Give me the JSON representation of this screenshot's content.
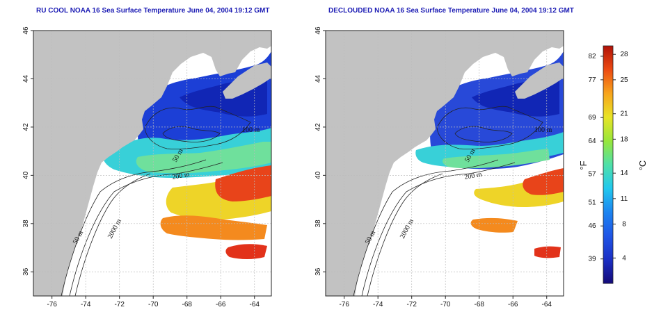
{
  "panels": [
    {
      "title": "RU COOL NOAA 16 Sea Surface Temperature June 04, 2004 19:12 GMT",
      "kind": "cloud-masked"
    },
    {
      "title": "DECLOUDED NOAA 16 Sea Surface Temperature June 04, 2004 19:12 GMT",
      "kind": "declouded"
    }
  ],
  "axes": {
    "x_ticks": [
      "-76",
      "-74",
      "-72",
      "-70",
      "-68",
      "-66",
      "-64"
    ],
    "y_ticks": [
      "46",
      "44",
      "42",
      "40",
      "38",
      "36"
    ],
    "lon_range": [
      -77.1,
      -63
    ],
    "lat_range": [
      35,
      46
    ]
  },
  "contour_labels": [
    "200 m",
    "2000 m",
    "50 m",
    "100 m",
    "50 m"
  ],
  "colorbar": {
    "f_label": "°F",
    "c_label": "°C",
    "f_ticks": [
      "82",
      "77",
      "69",
      "64",
      "57",
      "51",
      "46",
      "39"
    ],
    "c_ticks": [
      "28",
      "25",
      "21",
      "18",
      "14",
      "11",
      "8",
      "4"
    ],
    "c_range": [
      1,
      29
    ],
    "colors": [
      "#140a78",
      "#1b2fc4",
      "#1f55e6",
      "#1c84f0",
      "#21c8ee",
      "#4fe0a8",
      "#98e63a",
      "#e8e426",
      "#f7a41c",
      "#ec4a12",
      "#b01208"
    ]
  },
  "colors": {
    "land": "#c2c2c2",
    "ocean": "#ffffff",
    "title": "#1c1cb4",
    "grid": "#bdbdbd"
  }
}
